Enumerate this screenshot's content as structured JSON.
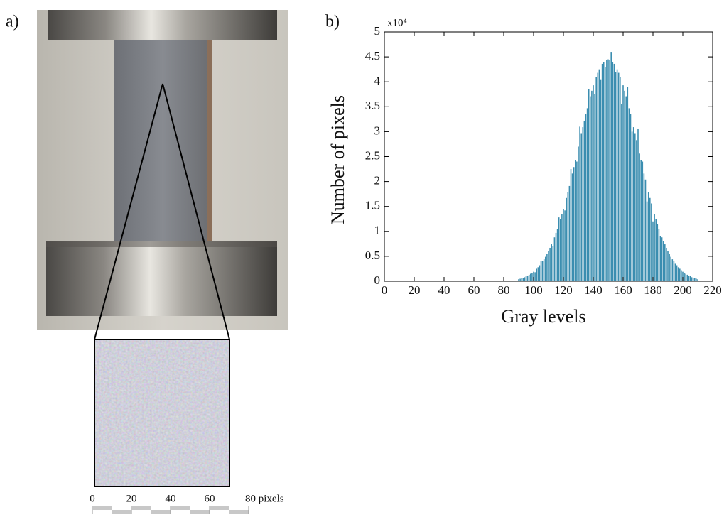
{
  "panel_a": {
    "label": "a)",
    "scale_bar": {
      "ticks": [
        0,
        20,
        40,
        60,
        {
          "value": 80,
          "label": "80 pixels"
        }
      ]
    }
  },
  "chart_data": {
    "type": "bar",
    "panel_label": "b)",
    "xlabel": "Gray levels",
    "ylabel": "Number of pixels",
    "y_multiplier": "x10⁴",
    "color": "#3a8db0",
    "x": [
      90,
      91,
      92,
      93,
      94,
      95,
      96,
      97,
      98,
      99,
      100,
      101,
      102,
      103,
      104,
      105,
      106,
      107,
      108,
      109,
      110,
      111,
      112,
      113,
      114,
      115,
      116,
      117,
      118,
      119,
      120,
      121,
      122,
      123,
      124,
      125,
      126,
      127,
      128,
      129,
      130,
      131,
      132,
      133,
      134,
      135,
      136,
      137,
      138,
      139,
      140,
      141,
      142,
      143,
      144,
      145,
      146,
      147,
      148,
      149,
      150,
      151,
      152,
      153,
      154,
      155,
      156,
      157,
      158,
      159,
      160,
      161,
      162,
      163,
      164,
      165,
      166,
      167,
      168,
      169,
      170,
      171,
      172,
      173,
      174,
      175,
      176,
      177,
      178,
      179,
      180,
      181,
      182,
      183,
      184,
      185,
      186,
      187,
      188,
      189,
      190,
      191,
      192,
      193,
      194,
      195,
      196,
      197,
      198,
      199,
      200,
      201,
      202,
      203,
      204,
      205,
      206,
      207,
      208,
      209,
      210
    ],
    "values": [
      0.04,
      0.05,
      0.06,
      0.07,
      0.08,
      0.1,
      0.11,
      0.13,
      0.15,
      0.17,
      0.19,
      0.18,
      0.25,
      0.28,
      0.32,
      0.41,
      0.4,
      0.44,
      0.49,
      0.55,
      0.6,
      0.67,
      0.74,
      0.7,
      0.88,
      0.97,
      1.05,
      1.28,
      1.24,
      1.34,
      1.45,
      1.42,
      1.67,
      1.79,
      1.91,
      2.25,
      2.16,
      2.29,
      2.43,
      2.4,
      2.7,
      3.1,
      2.97,
      3.09,
      3.22,
      3.35,
      3.47,
      3.85,
      3.71,
      3.82,
      3.93,
      3.75,
      4.1,
      4.18,
      4.25,
      4.05,
      4.36,
      4.4,
      4.3,
      4.44,
      4.45,
      4.44,
      4.6,
      4.4,
      4.36,
      4.2,
      4.25,
      4.18,
      4.1,
      3.55,
      3.93,
      3.82,
      3.71,
      3.9,
      3.47,
      3.35,
      3.0,
      3.09,
      2.97,
      2.83,
      3.05,
      2.56,
      2.43,
      2.4,
      2.16,
      2.04,
      1.6,
      1.79,
      1.67,
      1.56,
      1.2,
      1.34,
      1.24,
      1.15,
      1.05,
      0.9,
      0.88,
      0.81,
      0.74,
      0.67,
      0.6,
      0.55,
      0.49,
      0.44,
      0.4,
      0.35,
      0.32,
      0.28,
      0.25,
      0.22,
      0.19,
      0.17,
      0.15,
      0.13,
      0.11,
      0.1,
      0.08,
      0.07,
      0.06,
      0.05,
      0.04
    ],
    "xlim": [
      0,
      220
    ],
    "xticks": [
      0,
      20,
      40,
      60,
      80,
      100,
      120,
      140,
      160,
      180,
      200,
      220
    ],
    "ylim": [
      0,
      5
    ],
    "yticks": [
      0,
      0.5,
      1,
      1.5,
      2,
      2.5,
      3,
      3.5,
      4,
      4.5,
      5
    ]
  }
}
